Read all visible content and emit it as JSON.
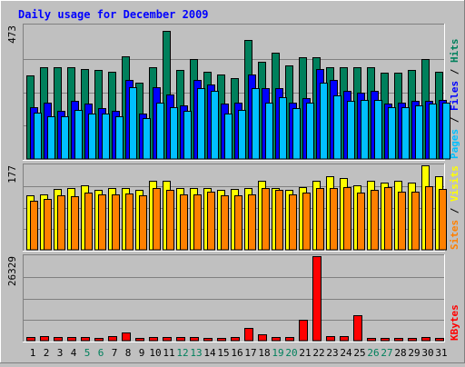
{
  "title": "Daily usage for December 2009",
  "chart_data": {
    "type": "bar",
    "title": "Daily usage for December 2009",
    "categories": [
      "1",
      "2",
      "3",
      "4",
      "5",
      "6",
      "7",
      "8",
      "9",
      "10",
      "11",
      "12",
      "13",
      "14",
      "15",
      "16",
      "17",
      "18",
      "19",
      "20",
      "21",
      "22",
      "23",
      "24",
      "25",
      "26",
      "27",
      "28",
      "29",
      "30",
      "31"
    ],
    "weekend_days": [
      "5",
      "6",
      "12",
      "13",
      "19",
      "20",
      "26",
      "27"
    ],
    "panels": [
      {
        "id": "hits-files-pages",
        "ymax": 473,
        "ymax_label": "473",
        "legend": [
          {
            "label": "Pages",
            "color": "#00C0FF"
          },
          {
            "label": "Files",
            "color": "#0000FF"
          },
          {
            "label": "Hits",
            "color": "#00805C"
          }
        ],
        "series": [
          {
            "name": "Hits",
            "color": "#00805C",
            "values": [
              295,
              325,
              325,
              325,
              320,
              315,
              310,
              365,
              270,
              325,
              455,
              315,
              355,
              310,
              300,
              285,
              420,
              345,
              375,
              330,
              360,
              360,
              325,
              325,
              325,
              325,
              305,
              305,
              315,
              355,
              310
            ]
          },
          {
            "name": "Files",
            "color": "#0000FF",
            "values": [
              185,
              200,
              170,
              205,
              195,
              180,
              170,
              280,
              160,
              255,
              230,
              190,
              280,
              265,
              195,
              200,
              300,
              250,
              250,
              200,
              215,
              320,
              280,
              240,
              235,
              240,
              195,
              200,
              205,
              205,
              210
            ]
          },
          {
            "name": "Pages",
            "color": "#00C0FF",
            "values": [
              165,
              150,
              150,
              175,
              160,
              160,
              150,
              255,
              145,
              200,
              185,
              170,
              250,
              240,
              160,
              175,
              250,
              200,
              220,
              180,
              200,
              270,
              225,
              205,
              210,
              210,
              185,
              185,
              190,
              195,
              200
            ]
          }
        ]
      },
      {
        "id": "visits-sites",
        "ymax": 177,
        "ymax_label": "177",
        "legend": [
          {
            "label": "Sites",
            "color": "#FF8000"
          },
          {
            "label": "Visits",
            "color": "#FFFF00"
          }
        ],
        "series": [
          {
            "name": "Visits",
            "color": "#FFFF00",
            "values": [
              115,
              116,
              128,
              130,
              135,
              126,
              130,
              130,
              126,
              145,
              145,
              130,
              130,
              130,
              125,
              128,
              130,
              145,
              130,
              125,
              131,
              145,
              155,
              150,
              135,
              145,
              140,
              145,
              140,
              177,
              155
            ]
          },
          {
            "name": "Sites",
            "color": "#FF8000",
            "values": [
              102,
              106,
              114,
              113,
              120,
              116,
              116,
              118,
              114,
              130,
              126,
              117,
              117,
              121,
              114,
              114,
              117,
              130,
              125,
              116,
              120,
              130,
              130,
              132,
              119,
              126,
              131,
              121,
              122,
              133,
              128
            ]
          }
        ]
      },
      {
        "id": "kbytes",
        "ymax": 26329,
        "ymax_label": "26329",
        "legend": [
          {
            "label": "KBytes",
            "color": "#FF0000"
          }
        ],
        "series": [
          {
            "name": "KBytes",
            "color": "#FF0000",
            "values": [
              1200,
              1350,
              1200,
              1050,
              1000,
              900,
              1300,
              2600,
              900,
              1050,
              1200,
              1050,
              1050,
              900,
              900,
              1000,
              4100,
              1850,
              1000,
              1000,
              6600,
              26329,
              1300,
              1400,
              8000,
              900,
              900,
              900,
              900,
              1000,
              900
            ]
          }
        ]
      }
    ],
    "colors": {
      "background": "#C0C0C0",
      "plot_background": "#C0C0C0",
      "title": "#0000FF",
      "grid": "#808080",
      "weekday_label": "#000000",
      "weekend_label": "#00805C"
    }
  }
}
